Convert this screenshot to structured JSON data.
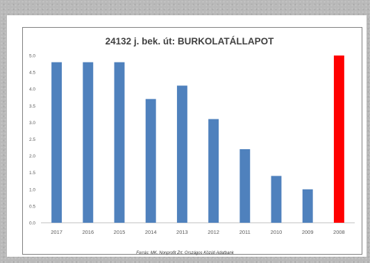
{
  "chart_data": {
    "type": "bar",
    "title": "24132 j. bek. út: BURKOLATÁLLAPOT",
    "categories": [
      "2017",
      "2016",
      "2015",
      "2014",
      "2013",
      "2012",
      "2011",
      "2010",
      "2009",
      "2008"
    ],
    "values": [
      4.8,
      4.8,
      4.8,
      3.7,
      4.1,
      3.1,
      2.2,
      1.4,
      1.0,
      5.0
    ],
    "bar_colors": [
      "#4f81bd",
      "#4f81bd",
      "#4f81bd",
      "#4f81bd",
      "#4f81bd",
      "#4f81bd",
      "#4f81bd",
      "#4f81bd",
      "#4f81bd",
      "#ff0000"
    ],
    "ylim": [
      0,
      5
    ],
    "yticks": [
      "0.0",
      "0.5",
      "1.0",
      "1.5",
      "2.0",
      "2.5",
      "3.0",
      "3.5",
      "4.0",
      "4.5",
      "5.0"
    ],
    "grid": false,
    "legend": "none"
  },
  "source": "Forrás: MK. Nonprofit Zrt. Országos Közúti Adatbank"
}
